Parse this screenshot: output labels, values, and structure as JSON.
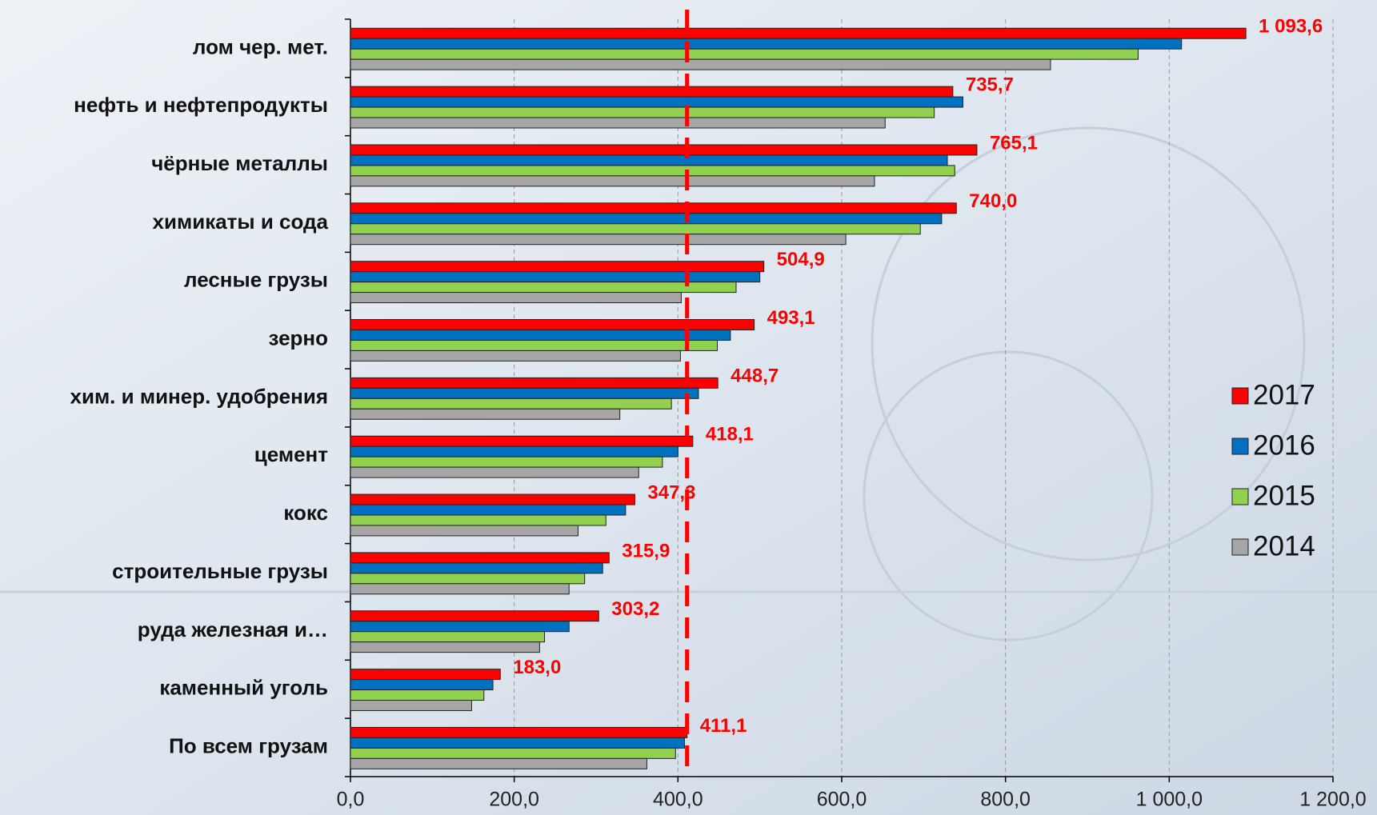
{
  "chart_data": {
    "type": "barh",
    "categories": [
      "лом чер. мет.",
      "нефть и нефтепродукты",
      "чёрные металлы",
      "химикаты и сода",
      "лесные грузы",
      "зерно",
      "хим. и минер. удобрения",
      "цемент",
      "кокс",
      "строительные грузы",
      "руда железная и…",
      "каменный уголь",
      "По всем грузам"
    ],
    "series": [
      {
        "name": "2017",
        "color": "#ff0000",
        "values": [
          1093.6,
          735.7,
          765.1,
          740.0,
          504.9,
          493.1,
          448.7,
          418.1,
          347.3,
          315.9,
          303.2,
          183.0,
          411.1
        ],
        "value_labels": [
          "1 093,6",
          "735,7",
          "765,1",
          "740,0",
          "504,9",
          "493,1",
          "448,7",
          "418,1",
          "347,3",
          "315,9",
          "303,2",
          "183,0",
          "411,1"
        ]
      },
      {
        "name": "2016",
        "color": "#0070c0",
        "values": [
          1015,
          748,
          729,
          722,
          500,
          464,
          425,
          400,
          336,
          308,
          267,
          174,
          408
        ]
      },
      {
        "name": "2015",
        "color": "#92d050",
        "values": [
          962,
          713,
          738,
          696,
          471,
          448,
          392,
          381,
          312,
          286,
          237,
          163,
          397
        ]
      },
      {
        "name": "2014",
        "color": "#a6a6a6",
        "values": [
          855,
          653,
          640,
          605,
          404,
          403,
          329,
          352,
          278,
          267,
          231,
          148,
          362
        ]
      }
    ],
    "xlim": [
      0,
      1200
    ],
    "xticks": [
      {
        "value": 0,
        "label": "0,0"
      },
      {
        "value": 200,
        "label": "200,0"
      },
      {
        "value": 400,
        "label": "400,0"
      },
      {
        "value": 600,
        "label": "600,0"
      },
      {
        "value": 800,
        "label": "800,0"
      },
      {
        "value": 1000,
        "label": "1 000,0"
      },
      {
        "value": 1200,
        "label": "1 200,0"
      }
    ],
    "grid": true,
    "legend": "right",
    "reference_line": {
      "value": 411.1,
      "color": "#ff0000"
    }
  }
}
